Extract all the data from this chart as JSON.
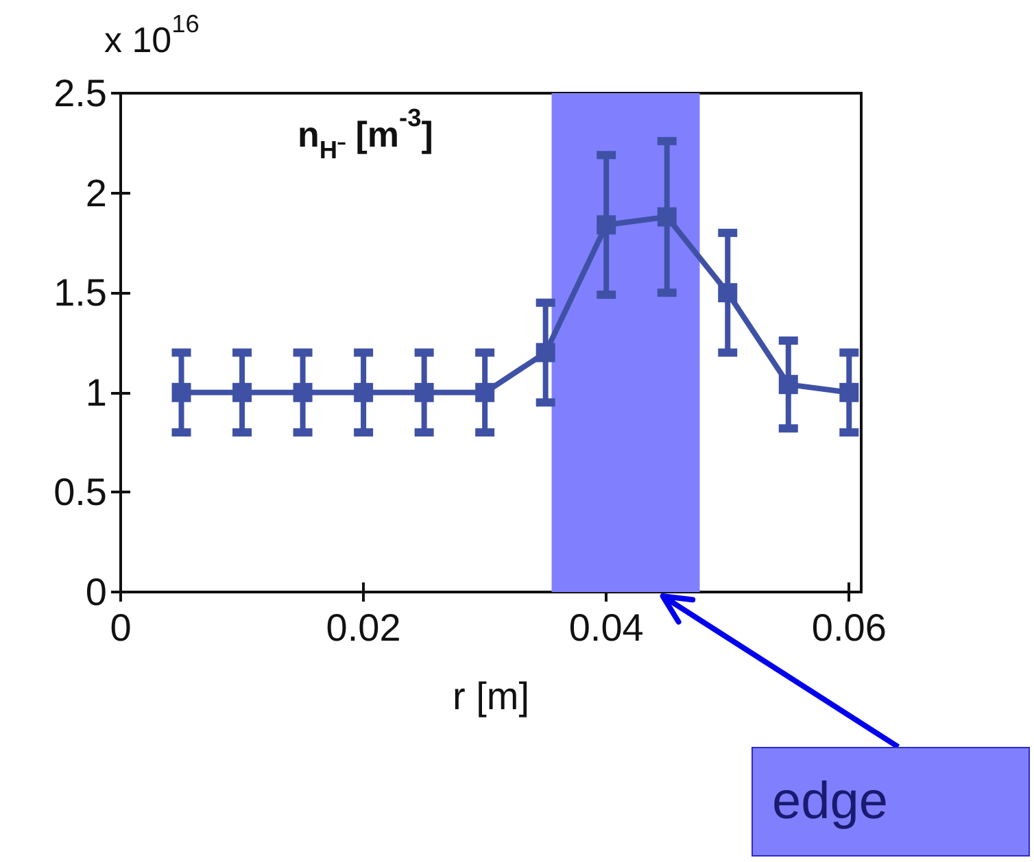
{
  "chart_data": {
    "type": "line",
    "title": "n$_{H⁻}$ [m$^{-3}$]",
    "xlabel": "r [m]",
    "ylabel": "x 10$^{16}$",
    "x": [
      0.005,
      0.01,
      0.015,
      0.02,
      0.025,
      0.03,
      0.035,
      0.04,
      0.045,
      0.05,
      0.055,
      0.06
    ],
    "series": [
      {
        "color": "#3f51a5",
        "values": [
          1.0,
          1.0,
          1.0,
          1.0,
          1.0,
          1.0,
          1.2,
          1.84,
          1.88,
          1.5,
          1.04,
          1.0
        ],
        "errors": [
          0.2,
          0.2,
          0.2,
          0.2,
          0.2,
          0.2,
          0.25,
          0.35,
          0.38,
          0.3,
          0.22,
          0.2
        ]
      }
    ],
    "xlim": [
      0,
      0.061
    ],
    "xticks": [
      0,
      0.02,
      0.04,
      0.06
    ],
    "ylim": [
      0,
      2.5
    ],
    "yticks": [
      0,
      0.5,
      1,
      1.5,
      2,
      2.5
    ],
    "bands": [
      {
        "axis": "x",
        "from": 0.0355,
        "to": 0.0477,
        "label": "edge",
        "color": "#8080ff"
      }
    ],
    "grid": false,
    "marker": "square",
    "line_style": "solid"
  }
}
